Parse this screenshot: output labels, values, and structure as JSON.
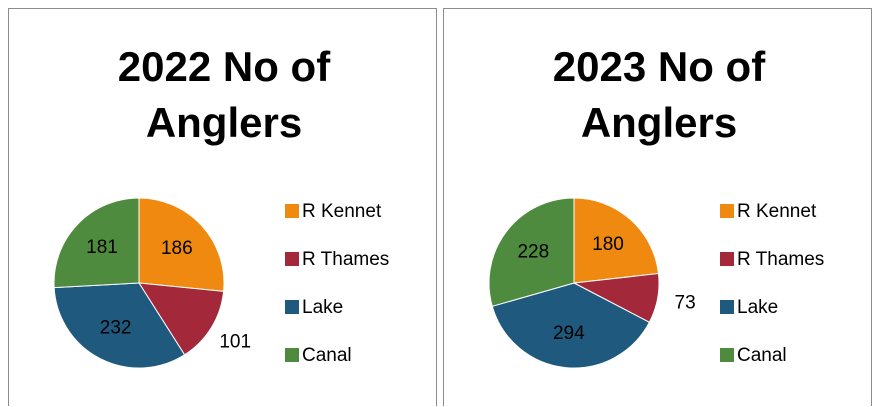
{
  "chart_data": [
    {
      "type": "pie",
      "title": "2022 No of Anglers",
      "categories": [
        "R Kennet",
        "R Thames",
        "Lake",
        "Canal"
      ],
      "values": [
        186,
        101,
        232,
        181
      ],
      "colors": [
        "#f0890f",
        "#a3283a",
        "#1f5a7e",
        "#4f8b3f"
      ]
    },
    {
      "type": "pie",
      "title": "2023 No of Anglers",
      "categories": [
        "R Kennet",
        "R Thames",
        "Lake",
        "Canal"
      ],
      "values": [
        180,
        73,
        294,
        228
      ],
      "colors": [
        "#f0890f",
        "#a3283a",
        "#1f5a7e",
        "#4f8b3f"
      ]
    }
  ]
}
